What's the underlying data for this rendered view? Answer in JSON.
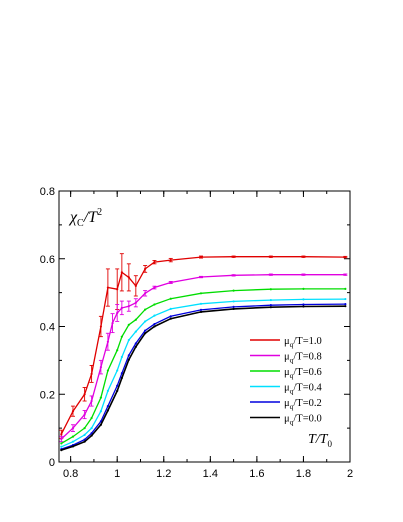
{
  "chart_data": {
    "type": "line",
    "title": "",
    "ylabel_main": "χ",
    "ylabel_sub": "C",
    "ylabel_tail": "/T",
    "ylabel_sup": "2",
    "xlabel_main": "T/T",
    "xlabel_sub": "0",
    "xlim": [
      0.75,
      2.0
    ],
    "ylim": [
      0.0,
      0.8
    ],
    "xticks": [
      0.8,
      1,
      1.2,
      1.4,
      1.6,
      1.8,
      2
    ],
    "xtick_labels": [
      "0.8",
      "1",
      "1.2",
      "1.4",
      "1.6",
      "1.8",
      "2"
    ],
    "yticks": [
      0,
      0.2,
      0.4,
      0.6,
      0.8
    ],
    "ytick_labels": [
      "0",
      "0.2",
      "0.4",
      "0.6",
      "0.8"
    ],
    "grid": false,
    "legend_position": "lower-right",
    "series": [
      {
        "name": "μ_q/T=1.0",
        "label_main": "μ",
        "label_sub": "q",
        "label_tail": "/T=1.0",
        "color": "#e00000",
        "x": [
          0.76,
          0.81,
          0.86,
          0.89,
          0.93,
          0.96,
          1.0,
          1.02,
          1.05,
          1.08,
          1.12,
          1.16,
          1.23,
          1.36,
          1.5,
          1.66,
          1.8,
          1.98
        ],
        "y": [
          0.082,
          0.15,
          0.2,
          0.26,
          0.4,
          0.515,
          0.51,
          0.56,
          0.545,
          0.52,
          0.57,
          0.59,
          0.596,
          0.605,
          0.606,
          0.606,
          0.606,
          0.605
        ],
        "err": [
          0.012,
          0.015,
          0.02,
          0.025,
          0.03,
          0.055,
          0.06,
          0.055,
          0.04,
          0.03,
          0.01,
          0.005,
          0.005,
          0.003,
          0.002,
          0.002,
          0.002,
          0.002
        ]
      },
      {
        "name": "μ_q/T=0.8",
        "label_main": "μ",
        "label_sub": "q",
        "label_tail": "/T=0.8",
        "color": "#e000e0",
        "x": [
          0.76,
          0.81,
          0.86,
          0.89,
          0.93,
          0.96,
          0.98,
          1.0,
          1.02,
          1.05,
          1.08,
          1.12,
          1.16,
          1.23,
          1.36,
          1.5,
          1.66,
          1.8,
          1.98
        ],
        "y": [
          0.068,
          0.1,
          0.14,
          0.18,
          0.28,
          0.355,
          0.41,
          0.44,
          0.455,
          0.46,
          0.47,
          0.498,
          0.515,
          0.53,
          0.546,
          0.551,
          0.553,
          0.553,
          0.553
        ],
        "err": [
          0.008,
          0.01,
          0.012,
          0.015,
          0.02,
          0.025,
          0.028,
          0.025,
          0.02,
          0.015,
          0.012,
          0.008,
          0.004,
          0.003,
          0.002,
          0.002,
          0.002,
          0.002,
          0.002
        ]
      },
      {
        "name": "μ_q/T=0.6",
        "label_main": "μ",
        "label_sub": "q",
        "label_tail": "/T=0.6",
        "color": "#00dd00",
        "x": [
          0.76,
          0.81,
          0.86,
          0.89,
          0.93,
          0.96,
          1.0,
          1.02,
          1.05,
          1.08,
          1.12,
          1.16,
          1.23,
          1.36,
          1.5,
          1.66,
          1.8,
          1.98
        ],
        "y": [
          0.055,
          0.075,
          0.1,
          0.13,
          0.19,
          0.27,
          0.33,
          0.37,
          0.405,
          0.42,
          0.45,
          0.465,
          0.482,
          0.498,
          0.506,
          0.51,
          0.511,
          0.511
        ]
      },
      {
        "name": "μ_q/T=0.4",
        "label_main": "μ",
        "label_sub": "q",
        "label_tail": "/T=0.4",
        "color": "#00e0ff",
        "x": [
          0.76,
          0.81,
          0.86,
          0.89,
          0.93,
          0.96,
          1.0,
          1.02,
          1.05,
          1.08,
          1.12,
          1.16,
          1.23,
          1.36,
          1.5,
          1.66,
          1.8,
          1.98
        ],
        "y": [
          0.045,
          0.06,
          0.08,
          0.1,
          0.15,
          0.21,
          0.27,
          0.31,
          0.36,
          0.385,
          0.415,
          0.432,
          0.452,
          0.467,
          0.474,
          0.478,
          0.48,
          0.481
        ]
      },
      {
        "name": "μ_q/T=0.2",
        "label_main": "μ",
        "label_sub": "q",
        "label_tail": "/T=0.2",
        "color": "#0000dd",
        "x": [
          0.76,
          0.81,
          0.86,
          0.89,
          0.93,
          0.96,
          1.0,
          1.02,
          1.05,
          1.08,
          1.12,
          1.16,
          1.23,
          1.36,
          1.5,
          1.66,
          1.8,
          1.98
        ],
        "y": [
          0.038,
          0.05,
          0.066,
          0.085,
          0.12,
          0.165,
          0.225,
          0.262,
          0.315,
          0.35,
          0.388,
          0.407,
          0.43,
          0.449,
          0.458,
          0.463,
          0.465,
          0.466
        ]
      },
      {
        "name": "μ_q/T=0.0",
        "label_main": "μ",
        "label_sub": "q",
        "label_tail": "/T=0.0",
        "color": "#000000",
        "x": [
          0.76,
          0.81,
          0.86,
          0.89,
          0.93,
          0.96,
          1.0,
          1.02,
          1.05,
          1.08,
          1.12,
          1.16,
          1.23,
          1.36,
          1.5,
          1.66,
          1.8,
          1.98
        ],
        "y": [
          0.035,
          0.046,
          0.06,
          0.078,
          0.11,
          0.152,
          0.21,
          0.248,
          0.302,
          0.34,
          0.38,
          0.4,
          0.423,
          0.443,
          0.452,
          0.457,
          0.459,
          0.46
        ]
      }
    ]
  }
}
